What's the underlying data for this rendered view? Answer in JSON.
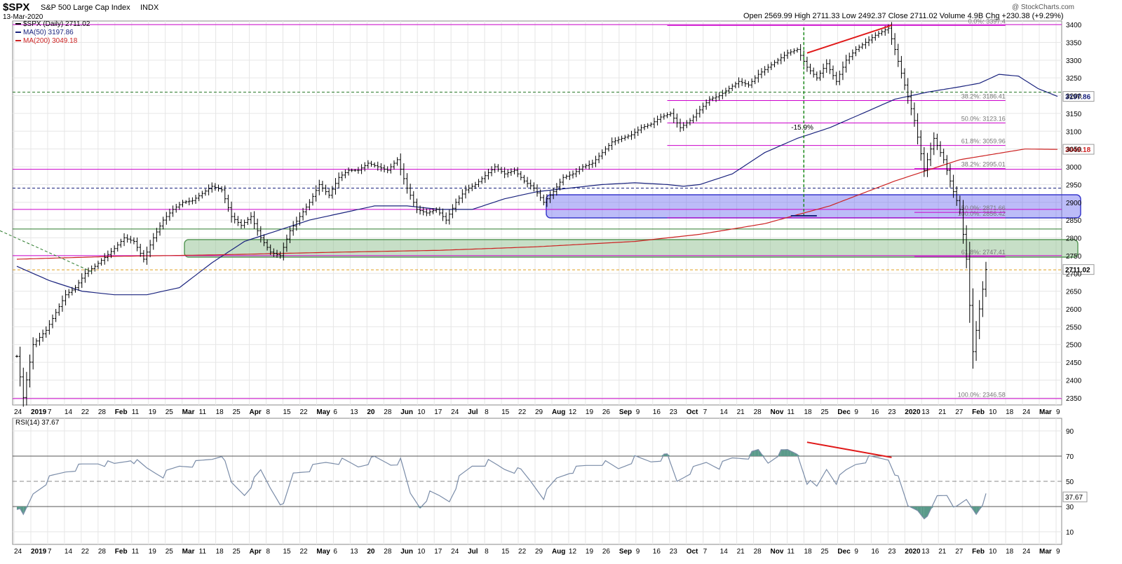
{
  "header": {
    "symbol": "$SPX",
    "name": "S&P 500 Large Cap Index",
    "exchange": "INDX",
    "date": "13-Mar-2020",
    "open_label": "Open",
    "open": "2569.99",
    "high_label": "High",
    "high": "2711.33",
    "low_label": "Low",
    "low": "2492.37",
    "close_label": "Close",
    "close": "2711.02",
    "volume_label": "Volume",
    "volume": "4.9B",
    "chg_label": "Chg",
    "chg": "+230.38 (+9.29%)",
    "watermark": "@ StockCharts.com"
  },
  "legend": {
    "price": "$SPX (Daily) 2711.02",
    "ma50": "MA(50) 3197.86",
    "ma200": "MA(200) 3049.18",
    "rsi": "RSI(14) 37.67"
  },
  "colors": {
    "price": "#000000",
    "ma50": "#1a237e",
    "ma200": "#cc2222",
    "fib": "#cc00cc",
    "rsi_line": "#7a8ca8",
    "rsi_fill": "#5a9a8a",
    "blue_zone": "#6a6af0",
    "green_zone": "#8fc08f",
    "grid": "#e6e6e6",
    "divergence": "#e01818"
  },
  "chart_data": [
    {
      "type": "ohlc",
      "panel": "price",
      "ylim": [
        2330,
        3410
      ],
      "yticks": [
        2350,
        2400,
        2450,
        2500,
        2550,
        2600,
        2650,
        2700,
        2750,
        2800,
        2850,
        2900,
        2950,
        3000,
        3050,
        3100,
        3150,
        3200,
        3250,
        3300,
        3350,
        3400
      ],
      "x_labels": [
        "24",
        "2019",
        "7",
        "14",
        "22",
        "28",
        "Feb",
        "11",
        "19",
        "25",
        "Mar",
        "11",
        "18",
        "25",
        "Apr",
        "8",
        "15",
        "22",
        "May",
        "6",
        "13",
        "20",
        "28",
        "Jun",
        "10",
        "17",
        "24",
        "Jul",
        "8",
        "15",
        "22",
        "29",
        "Aug",
        "12",
        "19",
        "26",
        "Sep",
        "9",
        "16",
        "23",
        "Oct",
        "7",
        "14",
        "21",
        "28",
        "Nov",
        "11",
        "18",
        "25",
        "Dec",
        "9",
        "16",
        "23",
        "2020",
        "13",
        "21",
        "27",
        "Feb",
        "10",
        "18",
        "24",
        "Mar",
        "9"
      ],
      "price_path": [
        [
          0,
          2467
        ],
        [
          2,
          2351
        ],
        [
          5,
          2500
        ],
        [
          9,
          2540
        ],
        [
          12,
          2590
        ],
        [
          15,
          2640
        ],
        [
          18,
          2660
        ],
        [
          21,
          2700
        ],
        [
          24,
          2720
        ],
        [
          27,
          2745
        ],
        [
          30,
          2770
        ],
        [
          33,
          2800
        ],
        [
          36,
          2790
        ],
        [
          39,
          2740
        ],
        [
          42,
          2800
        ],
        [
          45,
          2850
        ],
        [
          48,
          2880
        ],
        [
          51,
          2900
        ],
        [
          54,
          2905
        ],
        [
          57,
          2925
        ],
        [
          60,
          2945
        ],
        [
          63,
          2935
        ],
        [
          66,
          2860
        ],
        [
          69,
          2835
        ],
        [
          72,
          2860
        ],
        [
          75,
          2800
        ],
        [
          78,
          2760
        ],
        [
          81,
          2750
        ],
        [
          84,
          2820
        ],
        [
          87,
          2860
        ],
        [
          90,
          2900
        ],
        [
          93,
          2950
        ],
        [
          96,
          2920
        ],
        [
          99,
          2970
        ],
        [
          102,
          2990
        ],
        [
          105,
          2990
        ],
        [
          108,
          3010
        ],
        [
          111,
          3000
        ],
        [
          114,
          2990
        ],
        [
          117,
          3020
        ],
        [
          120,
          2940
        ],
        [
          123,
          2880
        ],
        [
          126,
          2870
        ],
        [
          129,
          2880
        ],
        [
          132,
          2850
        ],
        [
          135,
          2900
        ],
        [
          138,
          2935
        ],
        [
          141,
          2950
        ],
        [
          144,
          2975
        ],
        [
          147,
          3000
        ],
        [
          150,
          2980
        ],
        [
          153,
          2990
        ],
        [
          156,
          2960
        ],
        [
          159,
          2940
        ],
        [
          162,
          2900
        ],
        [
          165,
          2930
        ],
        [
          168,
          2970
        ],
        [
          171,
          2980
        ],
        [
          174,
          3000
        ],
        [
          177,
          3010
        ],
        [
          180,
          3040
        ],
        [
          183,
          3070
        ],
        [
          186,
          3080
        ],
        [
          189,
          3090
        ],
        [
          192,
          3110
        ],
        [
          195,
          3120
        ],
        [
          198,
          3140
        ],
        [
          201,
          3150
        ],
        [
          204,
          3110
        ],
        [
          207,
          3130
        ],
        [
          210,
          3160
        ],
        [
          213,
          3190
        ],
        [
          216,
          3200
        ],
        [
          219,
          3220
        ],
        [
          222,
          3240
        ],
        [
          225,
          3230
        ],
        [
          228,
          3260
        ],
        [
          231,
          3280
        ],
        [
          234,
          3300
        ],
        [
          237,
          3320
        ],
        [
          240,
          3330
        ],
        [
          243,
          3280
        ],
        [
          246,
          3250
        ],
        [
          249,
          3290
        ],
        [
          252,
          3240
        ],
        [
          255,
          3300
        ],
        [
          258,
          3330
        ],
        [
          261,
          3350
        ],
        [
          264,
          3370
        ],
        [
          266,
          3380
        ],
        [
          268,
          3390
        ],
        [
          270,
          3330
        ],
        [
          273,
          3230
        ],
        [
          276,
          3130
        ],
        [
          279,
          2990
        ],
        [
          282,
          3080
        ],
        [
          285,
          3020
        ],
        [
          288,
          2930
        ],
        [
          290,
          2880
        ],
        [
          292,
          2740
        ],
        [
          294,
          2480
        ],
        [
          296,
          2600
        ],
        [
          298,
          2711
        ]
      ],
      "ma50": [
        [
          0,
          2720
        ],
        [
          10,
          2680
        ],
        [
          20,
          2650
        ],
        [
          30,
          2640
        ],
        [
          40,
          2640
        ],
        [
          50,
          2660
        ],
        [
          60,
          2730
        ],
        [
          70,
          2790
        ],
        [
          80,
          2820
        ],
        [
          90,
          2850
        ],
        [
          100,
          2870
        ],
        [
          110,
          2890
        ],
        [
          120,
          2890
        ],
        [
          130,
          2880
        ],
        [
          140,
          2880
        ],
        [
          150,
          2910
        ],
        [
          160,
          2930
        ],
        [
          170,
          2940
        ],
        [
          180,
          2950
        ],
        [
          190,
          2955
        ],
        [
          200,
          2950
        ],
        [
          205,
          2945
        ],
        [
          210,
          2950
        ],
        [
          220,
          2980
        ],
        [
          230,
          3040
        ],
        [
          240,
          3080
        ],
        [
          250,
          3110
        ],
        [
          260,
          3150
        ],
        [
          270,
          3190
        ],
        [
          280,
          3210
        ],
        [
          290,
          3225
        ],
        [
          296,
          3235
        ],
        [
          302,
          3260
        ],
        [
          308,
          3255
        ],
        [
          314,
          3220
        ],
        [
          320,
          3198
        ]
      ],
      "ma200": [
        [
          0,
          2740
        ],
        [
          30,
          2748
        ],
        [
          60,
          2752
        ],
        [
          100,
          2760
        ],
        [
          130,
          2765
        ],
        [
          160,
          2775
        ],
        [
          190,
          2790
        ],
        [
          210,
          2810
        ],
        [
          230,
          2840
        ],
        [
          250,
          2890
        ],
        [
          270,
          2960
        ],
        [
          290,
          3020
        ],
        [
          310,
          3050
        ],
        [
          320,
          3049
        ]
      ],
      "fib_levels": [
        {
          "label": "0.0%: 3397.4",
          "value": 3397.4
        },
        {
          "label": "38.2%: 3186.41",
          "value": 3186.41
        },
        {
          "label": "50.0%: 3123.16",
          "value": 3123.16
        },
        {
          "label": "61.8%: 3059.96",
          "value": 3059.96
        },
        {
          "label": "100.0%: 2856.42",
          "value": 2856.42
        },
        {
          "label": "38.2%: 2995.01",
          "value": 2995.01
        },
        {
          "label": "50.0%: 2871.66",
          "value": 2871.66
        },
        {
          "label": "61.8%: 2747.41",
          "value": 2747.41
        },
        {
          "label": "100.0%: 2346.58",
          "value": 2346.58
        }
      ],
      "annotations": {
        "drop_pct": "-15.9%"
      },
      "price_tags": {
        "last": "2711.02",
        "ma50": "3197.86",
        "ma200": "3049.18"
      }
    },
    {
      "type": "line",
      "panel": "rsi",
      "ylim": [
        0,
        100
      ],
      "yticks": [
        10,
        30,
        50,
        70,
        90
      ],
      "rsi": [
        [
          0,
          30
        ],
        [
          2,
          22
        ],
        [
          5,
          40
        ],
        [
          10,
          52
        ],
        [
          15,
          58
        ],
        [
          20,
          62
        ],
        [
          25,
          65
        ],
        [
          30,
          63
        ],
        [
          35,
          68
        ],
        [
          40,
          60
        ],
        [
          45,
          55
        ],
        [
          50,
          62
        ],
        [
          55,
          64
        ],
        [
          60,
          68
        ],
        [
          63,
          72
        ],
        [
          66,
          48
        ],
        [
          70,
          40
        ],
        [
          75,
          58
        ],
        [
          78,
          45
        ],
        [
          82,
          30
        ],
        [
          85,
          56
        ],
        [
          90,
          60
        ],
        [
          95,
          65
        ],
        [
          100,
          66
        ],
        [
          105,
          62
        ],
        [
          110,
          68
        ],
        [
          115,
          64
        ],
        [
          118,
          66
        ],
        [
          121,
          40
        ],
        [
          124,
          30
        ],
        [
          127,
          40
        ],
        [
          130,
          38
        ],
        [
          133,
          35
        ],
        [
          136,
          52
        ],
        [
          140,
          62
        ],
        [
          145,
          65
        ],
        [
          150,
          60
        ],
        [
          155,
          58
        ],
        [
          158,
          50
        ],
        [
          162,
          38
        ],
        [
          166,
          52
        ],
        [
          170,
          58
        ],
        [
          175,
          62
        ],
        [
          180,
          65
        ],
        [
          185,
          60
        ],
        [
          190,
          68
        ],
        [
          195,
          66
        ],
        [
          200,
          70
        ],
        [
          203,
          50
        ],
        [
          207,
          58
        ],
        [
          212,
          65
        ],
        [
          216,
          62
        ],
        [
          220,
          68
        ],
        [
          225,
          70
        ],
        [
          228,
          74
        ],
        [
          231,
          65
        ],
        [
          234,
          72
        ],
        [
          237,
          74
        ],
        [
          240,
          72
        ],
        [
          243,
          50
        ],
        [
          246,
          45
        ],
        [
          249,
          60
        ],
        [
          252,
          50
        ],
        [
          255,
          58
        ],
        [
          258,
          64
        ],
        [
          262,
          68
        ],
        [
          266,
          68
        ],
        [
          268,
          68
        ],
        [
          271,
          52
        ],
        [
          274,
          30
        ],
        [
          277,
          28
        ],
        [
          280,
          20
        ],
        [
          283,
          38
        ],
        [
          286,
          40
        ],
        [
          289,
          28
        ],
        [
          292,
          35
        ],
        [
          295,
          25
        ],
        [
          298,
          38
        ]
      ],
      "current": "37.67"
    }
  ]
}
